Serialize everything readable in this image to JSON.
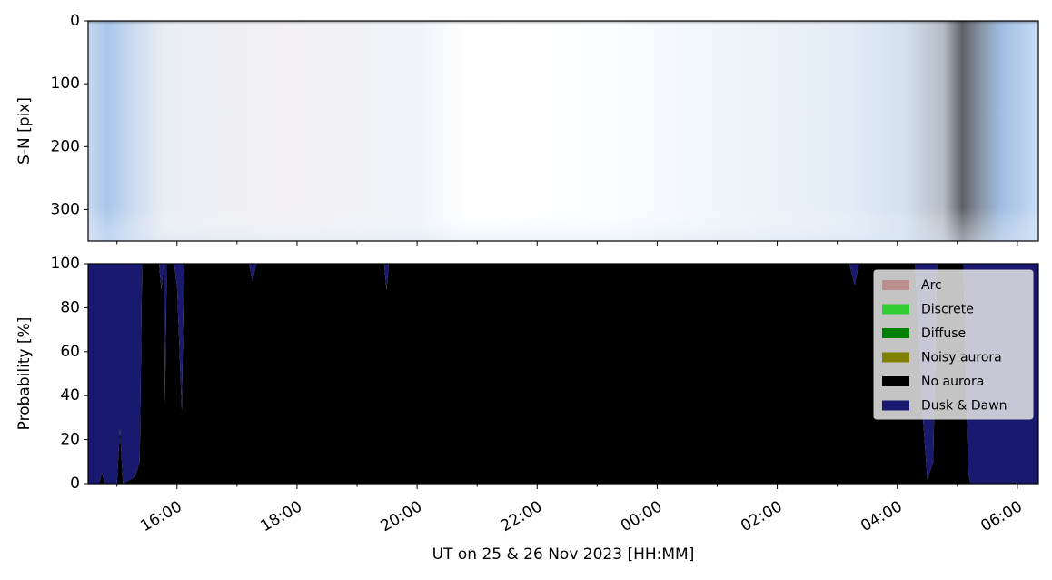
{
  "chart_data": [
    {
      "type": "image",
      "ylabel": "S-N [pix]",
      "ylim": [
        350,
        0
      ],
      "yticks": [
        0,
        100,
        200,
        300
      ],
      "xlim": [
        14.52,
        30.35
      ],
      "xticks": [
        16,
        18,
        20,
        22,
        24,
        26,
        28,
        30
      ],
      "xminorticks": [
        15,
        17,
        19,
        21,
        23,
        25,
        27,
        29
      ]
    },
    {
      "type": "stacked_area",
      "ylabel": "Probability [%]",
      "xlabel": "UT on 25 & 26 Nov 2023 [HH:MM]",
      "xlim": [
        14.52,
        30.35
      ],
      "xticks": [
        {
          "value": 16,
          "label": "16:00"
        },
        {
          "value": 18,
          "label": "18:00"
        },
        {
          "value": 20,
          "label": "20:00"
        },
        {
          "value": 22,
          "label": "22:00"
        },
        {
          "value": 24,
          "label": "00:00"
        },
        {
          "value": 26,
          "label": "02:00"
        },
        {
          "value": 28,
          "label": "04:00"
        },
        {
          "value": 30,
          "label": "06:00"
        }
      ],
      "xminorticks": [
        15,
        17,
        19,
        21,
        23,
        25,
        27,
        29
      ],
      "ylim": [
        0,
        100
      ],
      "yticks": [
        0,
        20,
        40,
        60,
        80,
        100
      ],
      "legend": "upper right",
      "x": [
        14.52,
        14.7,
        14.75,
        14.8,
        15.0,
        15.05,
        15.1,
        15.3,
        15.38,
        15.42,
        15.7,
        15.74,
        15.78,
        15.8,
        15.83,
        15.95,
        16.0,
        16.08,
        16.12,
        17.2,
        17.26,
        17.32,
        19.45,
        19.49,
        19.53,
        27.2,
        27.29,
        27.36,
        28.3,
        28.4,
        28.5,
        28.6,
        28.66,
        29.1,
        29.18,
        29.22,
        29.9,
        29.94,
        30.0,
        30.35
      ],
      "series": [
        {
          "name": "Arc",
          "color": "#bc8f8f",
          "values": [
            0,
            0,
            0,
            0,
            0,
            0,
            0,
            0,
            0,
            0,
            0,
            0,
            0,
            0,
            0,
            0,
            0,
            0,
            0,
            0,
            0,
            0,
            0,
            0,
            0,
            0,
            0,
            0,
            0,
            0,
            0,
            0,
            0,
            0,
            0,
            0,
            0,
            0,
            0,
            0
          ]
        },
        {
          "name": "Discrete",
          "color": "#32cd32",
          "values": [
            0,
            0,
            0,
            0,
            0,
            0,
            0,
            0,
            0,
            0,
            0,
            0,
            0,
            0,
            0,
            0,
            0,
            0,
            0,
            0,
            0,
            0,
            0,
            0,
            0,
            0,
            0,
            0,
            0,
            0,
            0,
            0,
            0,
            0,
            0,
            0,
            0,
            0,
            0,
            0
          ]
        },
        {
          "name": "Diffuse",
          "color": "#008000",
          "values": [
            0,
            0,
            0,
            0,
            0,
            0,
            0,
            0,
            0,
            0,
            0,
            0,
            0,
            0,
            0,
            0,
            0,
            0,
            0,
            0,
            0,
            0,
            0,
            0,
            0,
            0,
            0,
            0,
            0,
            0,
            0,
            0,
            0,
            0,
            0,
            0,
            0,
            0,
            0,
            0
          ]
        },
        {
          "name": "Noisy aurora",
          "color": "#808000",
          "values": [
            0,
            0,
            0,
            0,
            0,
            0,
            0,
            0,
            0,
            0,
            0,
            0,
            0,
            0,
            0,
            0,
            0,
            0,
            0,
            0,
            0,
            0,
            0,
            0,
            0,
            0,
            0,
            0,
            0,
            0,
            0,
            0,
            0,
            0,
            0,
            0,
            0,
            0,
            0,
            0
          ]
        },
        {
          "name": "No aurora",
          "color": "#000000",
          "values": [
            0,
            0,
            5,
            0,
            0,
            25,
            0,
            3,
            10,
            100,
            100,
            88,
            100,
            36,
            100,
            100,
            90,
            33,
            100,
            100,
            92,
            100,
            100,
            88,
            100,
            100,
            90,
            100,
            100,
            40,
            2,
            10,
            100,
            100,
            5,
            0,
            0,
            1,
            0,
            0
          ]
        },
        {
          "name": "Dusk & Dawn",
          "color": "#191970",
          "values": [
            100,
            100,
            95,
            100,
            100,
            75,
            100,
            97,
            90,
            0,
            0,
            12,
            0,
            64,
            0,
            0,
            10,
            67,
            0,
            0,
            8,
            0,
            0,
            12,
            0,
            0,
            10,
            0,
            0,
            60,
            98,
            90,
            0,
            0,
            95,
            100,
            100,
            99,
            100,
            100
          ]
        }
      ]
    }
  ]
}
